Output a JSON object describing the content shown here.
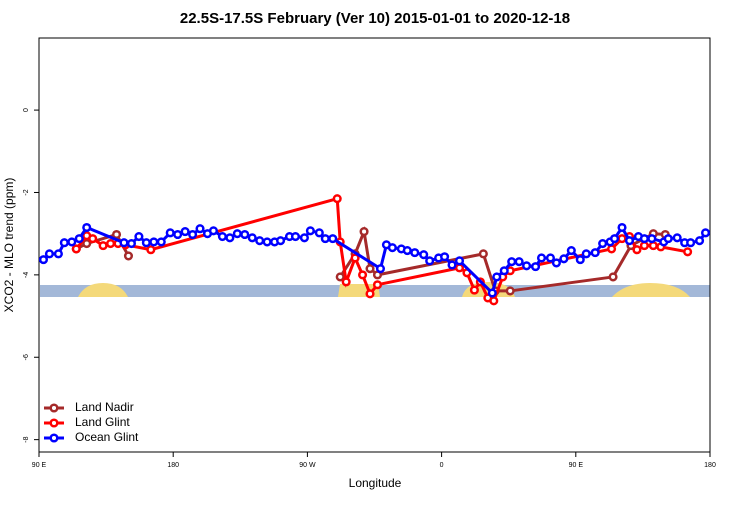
{
  "chart_data": {
    "type": "line",
    "title": "22.5S-17.5S February (Ver 10)   2015-01-01 to 2020-12-18",
    "x_label": "Longitude",
    "y_label": "XCO2 - MLO trend (ppm)",
    "xlim": [
      90,
      540
    ],
    "xticks": [
      {
        "value": 90,
        "label": "90 E"
      },
      180,
      {
        "value": 270,
        "label": "90 W"
      },
      {
        "value": 360,
        "label": "0"
      },
      {
        "value": 450,
        "label": "90 E"
      },
      {
        "value": 540,
        "label": "180"
      }
    ],
    "ylim": [
      -8.3,
      1.75
    ],
    "yticks": [
      -8,
      -6,
      -4,
      -2,
      0
    ],
    "legend": "bottom-left",
    "series": [
      {
        "name": "Land Nadir",
        "color": "#a52a2a",
        "x": [
          115,
          122,
          142,
          150,
          290,
          292,
          302,
          308,
          312,
          317,
          388,
          396,
          406,
          475,
          487,
          502,
          510
        ],
        "values": [
          -3.37,
          -3.24,
          -3.02,
          -3.54,
          null,
          -4.05,
          -3.49,
          -2.95,
          -3.85,
          -4.0,
          -3.49,
          -4.39,
          -4.39,
          -4.05,
          -3.29,
          -3.0,
          -3.02
        ]
      },
      {
        "name": "Land Glint",
        "color": "#ff0000",
        "x": [
          115,
          122,
          126,
          133,
          138,
          143,
          148,
          165,
          290,
          292,
          296,
          302,
          307,
          312,
          317,
          372,
          377,
          382,
          386,
          391,
          395,
          401,
          406,
          474,
          481,
          486,
          491,
          496,
          502,
          507,
          525
        ],
        "values": [
          -3.37,
          -3.05,
          -3.12,
          -3.29,
          -3.24,
          -3.24,
          -3.27,
          -3.39,
          -2.15,
          -3.2,
          -4.17,
          -3.59,
          -4.0,
          -4.46,
          -4.24,
          -3.83,
          -3.95,
          -4.37,
          -4.17,
          -4.56,
          -4.63,
          -4.05,
          -3.9,
          -3.37,
          -3.12,
          -3.07,
          -3.39,
          -3.29,
          -3.29,
          -3.32,
          -3.44
        ]
      },
      {
        "name": "Ocean Glint",
        "color": "#0000ff",
        "x": [
          93,
          97,
          103,
          107,
          112,
          117,
          122,
          147,
          152,
          157,
          162,
          167,
          172,
          178,
          183,
          188,
          193,
          198,
          203,
          207,
          213,
          218,
          223,
          228,
          233,
          238,
          243,
          248,
          252,
          258,
          262,
          268,
          272,
          278,
          282,
          287,
          319,
          323,
          327,
          333,
          337,
          342,
          348,
          352,
          358,
          362,
          367,
          372,
          394,
          397,
          402,
          407,
          412,
          417,
          423,
          427,
          433,
          437,
          442,
          447,
          453,
          457,
          463,
          468,
          473,
          476,
          481,
          486,
          492,
          496,
          501,
          509,
          512,
          518,
          523,
          527,
          533,
          537
        ],
        "values": [
          -3.63,
          -3.49,
          -3.49,
          -3.22,
          -3.2,
          -3.12,
          -2.85,
          -3.22,
          -3.24,
          -3.07,
          -3.22,
          -3.2,
          -3.2,
          -2.98,
          -3.02,
          -2.95,
          -3.02,
          -2.88,
          -3.0,
          -2.93,
          -3.07,
          -3.1,
          -3.0,
          -3.02,
          -3.1,
          -3.17,
          -3.2,
          -3.2,
          -3.17,
          -3.07,
          -3.07,
          -3.1,
          -2.93,
          -2.98,
          -3.12,
          -3.12,
          -3.85,
          -3.27,
          -3.34,
          -3.37,
          -3.41,
          -3.46,
          -3.51,
          -3.66,
          -3.59,
          -3.56,
          -3.76,
          -3.66,
          -4.44,
          -4.05,
          -3.9,
          -3.68,
          -3.68,
          -3.78,
          -3.8,
          -3.59,
          -3.59,
          -3.71,
          -3.61,
          -3.41,
          -3.63,
          -3.49,
          -3.46,
          -3.24,
          -3.2,
          -3.12,
          -2.85,
          -3.17,
          -3.07,
          -3.12,
          -3.12,
          -3.2,
          -3.12,
          -3.1,
          -3.22,
          -3.22,
          -3.17,
          -2.98
        ]
      }
    ]
  }
}
